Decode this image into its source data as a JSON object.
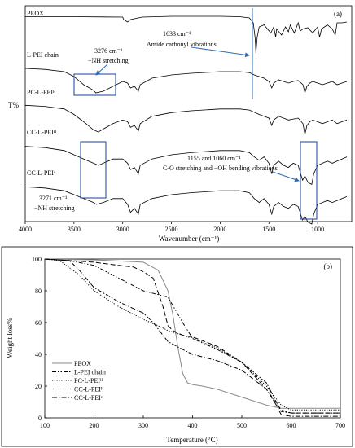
{
  "chart_data": [
    {
      "type": "line",
      "panel_label": "(a)",
      "xlabel": "Wavenumber (cm⁻¹)",
      "ylabel": "T%",
      "xlim": [
        4000,
        650
      ],
      "x_reversed": true,
      "xticks": [
        4000,
        3500,
        3000,
        2500,
        2000,
        1500,
        1000
      ],
      "series": [
        {
          "name": "PEOX",
          "x": [
            4000,
            3500,
            3000,
            2990,
            2950,
            2920,
            2800,
            2500,
            2000,
            1800,
            1700,
            1660,
            1640,
            1633,
            1620,
            1600,
            1550,
            1480,
            1450,
            1430,
            1420,
            1370,
            1330,
            1300,
            1280,
            1240,
            1200,
            1180,
            1150,
            1100,
            1050,
            1000,
            980,
            960,
            900,
            850,
            820,
            800,
            750,
            700
          ],
          "t": [
            0.05,
            0.05,
            0.06,
            0.12,
            0.18,
            0.12,
            0.06,
            0.04,
            0.04,
            0.05,
            0.08,
            0.2,
            0.6,
            0.95,
            0.55,
            0.3,
            0.25,
            0.45,
            0.3,
            0.55,
            0.35,
            0.5,
            0.3,
            0.42,
            0.25,
            0.45,
            0.2,
            0.4,
            0.35,
            0.32,
            0.45,
            0.3,
            0.55,
            0.35,
            0.25,
            0.35,
            0.5,
            0.2,
            0.2,
            0.18
          ]
        },
        {
          "name": "L-PEI chain",
          "x": [
            4000,
            3800,
            3600,
            3500,
            3400,
            3300,
            3276,
            3200,
            3100,
            3000,
            2950,
            2920,
            2880,
            2840,
            2820,
            2700,
            2500,
            2300,
            2000,
            1800,
            1700,
            1650,
            1600,
            1550,
            1500,
            1470,
            1450,
            1400,
            1350,
            1300,
            1250,
            1200,
            1150,
            1130,
            1110,
            1080,
            1050,
            1000,
            950,
            900,
            850,
            800,
            750,
            700
          ],
          "t": [
            0.05,
            0.08,
            0.15,
            0.3,
            0.55,
            0.72,
            0.8,
            0.75,
            0.6,
            0.45,
            0.5,
            0.65,
            0.6,
            0.75,
            0.55,
            0.35,
            0.25,
            0.2,
            0.15,
            0.15,
            0.18,
            0.25,
            0.3,
            0.35,
            0.45,
            0.65,
            0.5,
            0.4,
            0.45,
            0.5,
            0.45,
            0.42,
            0.55,
            0.8,
            0.6,
            0.5,
            0.45,
            0.5,
            0.55,
            0.5,
            0.45,
            0.55,
            0.5,
            0.45
          ]
        },
        {
          "name": "PC-L-PEIᴴ",
          "x": [
            4000,
            3800,
            3600,
            3500,
            3400,
            3300,
            3250,
            3200,
            3100,
            3000,
            2950,
            2920,
            2880,
            2840,
            2820,
            2700,
            2500,
            2300,
            2000,
            1800,
            1700,
            1600,
            1550,
            1500,
            1470,
            1450,
            1400,
            1350,
            1300,
            1200,
            1150,
            1130,
            1110,
            1080,
            1050,
            1000,
            950,
            900,
            850,
            800,
            750,
            700
          ],
          "t": [
            0.05,
            0.08,
            0.15,
            0.3,
            0.5,
            0.72,
            0.78,
            0.7,
            0.55,
            0.45,
            0.5,
            0.65,
            0.6,
            0.75,
            0.55,
            0.35,
            0.25,
            0.2,
            0.15,
            0.15,
            0.18,
            0.3,
            0.35,
            0.4,
            0.6,
            0.45,
            0.35,
            0.4,
            0.45,
            0.4,
            0.55,
            0.85,
            0.6,
            0.5,
            0.45,
            0.5,
            0.55,
            0.5,
            0.45,
            0.55,
            0.5,
            0.45
          ]
        },
        {
          "name": "CC-L-PEIᴴ",
          "x": [
            4000,
            3800,
            3600,
            3500,
            3400,
            3300,
            3250,
            3200,
            3100,
            3000,
            2950,
            2920,
            2880,
            2840,
            2820,
            2700,
            2500,
            2300,
            2000,
            1800,
            1700,
            1650,
            1600,
            1550,
            1500,
            1470,
            1450,
            1400,
            1350,
            1300,
            1250,
            1200,
            1155,
            1130,
            1100,
            1060,
            1040,
            1000,
            950,
            900,
            850,
            800,
            750,
            700
          ],
          "t": [
            0.05,
            0.08,
            0.15,
            0.25,
            0.35,
            0.45,
            0.5,
            0.45,
            0.35,
            0.35,
            0.45,
            0.6,
            0.55,
            0.7,
            0.5,
            0.35,
            0.25,
            0.2,
            0.15,
            0.15,
            0.2,
            0.3,
            0.38,
            0.3,
            0.45,
            0.7,
            0.5,
            0.4,
            0.5,
            0.55,
            0.45,
            0.5,
            0.85,
            0.75,
            0.9,
            0.95,
            0.7,
            0.5,
            0.45,
            0.4,
            0.45,
            0.4,
            0.35,
            0.3
          ]
        },
        {
          "name": "CC-L-PEIᶜ",
          "x": [
            4000,
            3800,
            3600,
            3500,
            3400,
            3300,
            3271,
            3200,
            3100,
            3000,
            2950,
            2920,
            2880,
            2840,
            2820,
            2700,
            2500,
            2300,
            2000,
            1800,
            1700,
            1650,
            1600,
            1550,
            1500,
            1470,
            1450,
            1400,
            1350,
            1300,
            1250,
            1200,
            1155,
            1130,
            1100,
            1060,
            1040,
            1000,
            950,
            900,
            850,
            800,
            750,
            700
          ],
          "t": [
            0.05,
            0.08,
            0.15,
            0.25,
            0.35,
            0.45,
            0.5,
            0.45,
            0.35,
            0.35,
            0.5,
            0.7,
            0.6,
            0.75,
            0.5,
            0.35,
            0.25,
            0.2,
            0.15,
            0.15,
            0.2,
            0.35,
            0.45,
            0.35,
            0.5,
            0.75,
            0.55,
            0.45,
            0.55,
            0.6,
            0.5,
            0.55,
            0.9,
            0.8,
            0.95,
            1.0,
            0.75,
            0.5,
            0.45,
            0.4,
            0.45,
            0.4,
            0.35,
            0.3
          ]
        }
      ],
      "annotations": [
        {
          "text": "1633 cm⁻¹",
          "x": 1633
        },
        {
          "text": "Amide carbonyl vibrations"
        },
        {
          "text": "3276 cm⁻¹",
          "x": 3276
        },
        {
          "text": "−NH stretching"
        },
        {
          "text": "1155 and 1060 cm⁻¹",
          "x": [
            1155,
            1060
          ]
        },
        {
          "text": "C-O stretching and −OH bending vibrations"
        },
        {
          "text": "3271 cm⁻¹",
          "x": 3271
        },
        {
          "text": "−NH stretching"
        }
      ]
    },
    {
      "type": "line",
      "panel_label": "(b)",
      "xlabel": "Temperature (°C)",
      "ylabel": "Weight loss%",
      "xlim": [
        100,
        700
      ],
      "ylim": [
        0,
        100
      ],
      "xticks": [
        100,
        200,
        300,
        400,
        500,
        600,
        700
      ],
      "yticks": [
        0,
        20,
        40,
        60,
        80,
        100
      ],
      "legend": "bottom-left",
      "series": [
        {
          "name": "PEOX",
          "style": "solid-gray",
          "x": [
            100,
            200,
            300,
            330,
            350,
            360,
            370,
            380,
            390,
            400,
            420,
            450,
            500,
            550,
            580,
            600,
            700
          ],
          "y": [
            100,
            99.5,
            98,
            93,
            80,
            65,
            45,
            28,
            22,
            21,
            20,
            18,
            13,
            8,
            6,
            6,
            6
          ]
        },
        {
          "name": "L-PEI chain",
          "style": "dash-dot-dot",
          "x": [
            100,
            150,
            200,
            250,
            300,
            350,
            380,
            400,
            450,
            500,
            550,
            570,
            580,
            600,
            700
          ],
          "y": [
            100,
            99,
            96,
            88,
            80,
            76,
            60,
            50,
            43,
            35,
            22,
            10,
            4,
            3,
            3
          ]
        },
        {
          "name": "PC-L-PEIᴴ",
          "style": "dotted",
          "x": [
            100,
            130,
            170,
            200,
            250,
            300,
            330,
            350,
            400,
            450,
            500,
            550,
            580,
            600,
            700
          ],
          "y": [
            100,
            99,
            90,
            80,
            70,
            62,
            58,
            55,
            50,
            44,
            35,
            20,
            8,
            5,
            5
          ]
        },
        {
          "name": "CC-L-PEIᴴ",
          "style": "dashed",
          "x": [
            100,
            150,
            200,
            250,
            280,
            300,
            320,
            340,
            350,
            360,
            380,
            400,
            450,
            500,
            550,
            580,
            600,
            700
          ],
          "y": [
            100,
            99,
            98,
            96,
            95,
            92,
            88,
            70,
            58,
            55,
            52,
            51,
            45,
            35,
            18,
            5,
            3,
            3
          ]
        },
        {
          "name": "CC-L-PEIᶜ",
          "style": "dash-dot",
          "x": [
            100,
            150,
            170,
            200,
            250,
            300,
            320,
            350,
            380,
            400,
            450,
            500,
            550,
            570,
            580,
            600,
            700
          ],
          "y": [
            100,
            99,
            93,
            82,
            73,
            66,
            60,
            48,
            43,
            40,
            36,
            30,
            18,
            8,
            2,
            1,
            1
          ]
        }
      ]
    }
  ]
}
